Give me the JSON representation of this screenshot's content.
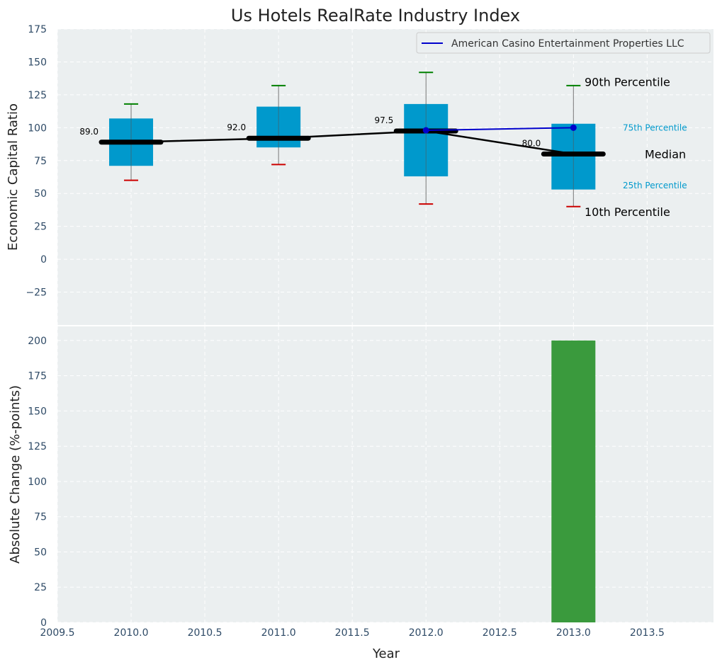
{
  "chart_data": [
    {
      "type": "box",
      "title": "Us Hotels RealRate Industry Index",
      "xlabel": "",
      "ylabel": "Economic Capital Ratio",
      "xlim": [
        2009.5,
        2013.95
      ],
      "ylim": [
        -50,
        175
      ],
      "yticks": [
        -25,
        0,
        25,
        50,
        75,
        100,
        125,
        150,
        175
      ],
      "ytick_labels": [
        "−25",
        "0",
        "25",
        "50",
        "75",
        "100",
        "125",
        "150",
        "175"
      ],
      "grid": true,
      "boxes": [
        {
          "year": 2010,
          "p10": 60,
          "p25": 71,
          "median": 89.0,
          "p75": 107,
          "p90": 118,
          "median_label": "89.0"
        },
        {
          "year": 2011,
          "p10": 72,
          "p25": 85,
          "median": 92.0,
          "p75": 116,
          "p90": 132,
          "median_label": "92.0"
        },
        {
          "year": 2012,
          "p10": 42,
          "p25": 63,
          "median": 97.5,
          "p75": 118,
          "p90": 142,
          "median_label": "97.5"
        },
        {
          "year": 2013,
          "p10": 40,
          "p25": 53,
          "median": 80.0,
          "p75": 103,
          "p90": 132,
          "median_label": "80.0"
        }
      ],
      "series": [
        {
          "name": "American Casino Entertainment Properties LLC",
          "color": "#0000cc",
          "x": [
            2012,
            2013
          ],
          "y": [
            98,
            100
          ]
        }
      ],
      "median_line_color": "#000000",
      "box_color": "#0099cc",
      "whisker_top_color": "#008000",
      "whisker_bottom_color": "#cc0000",
      "legend": {
        "position": "top-right",
        "entries": [
          "American Casino Entertainment Properties LLC"
        ]
      },
      "annotations": {
        "p90": {
          "text": "90th Percentile",
          "y": 135
        },
        "p75": {
          "text": "75th Percentile",
          "y": 100
        },
        "median": {
          "text": "Median",
          "y": 80
        },
        "p25": {
          "text": "25th Percentile",
          "y": 56
        },
        "p10": {
          "text": "10th Percentile",
          "y": 36
        }
      }
    },
    {
      "type": "bar",
      "xlabel": "Year",
      "ylabel": "Absolute Change (%-points)",
      "xlim": [
        2009.5,
        2013.95
      ],
      "ylim": [
        0,
        210
      ],
      "xticks": [
        2009.5,
        2010.0,
        2010.5,
        2011.0,
        2011.5,
        2012.0,
        2012.5,
        2013.0,
        2013.5
      ],
      "xtick_labels": [
        "2009.5",
        "2010.0",
        "2010.5",
        "2011.0",
        "2011.5",
        "2012.0",
        "2012.5",
        "2013.0",
        "2013.5"
      ],
      "yticks": [
        0,
        25,
        50,
        75,
        100,
        125,
        150,
        175,
        200
      ],
      "ytick_labels": [
        "0",
        "25",
        "50",
        "75",
        "100",
        "125",
        "150",
        "175",
        "200"
      ],
      "grid": true,
      "x": [
        2013
      ],
      "values": [
        200
      ],
      "bar_color": "#3a9a3d"
    }
  ]
}
